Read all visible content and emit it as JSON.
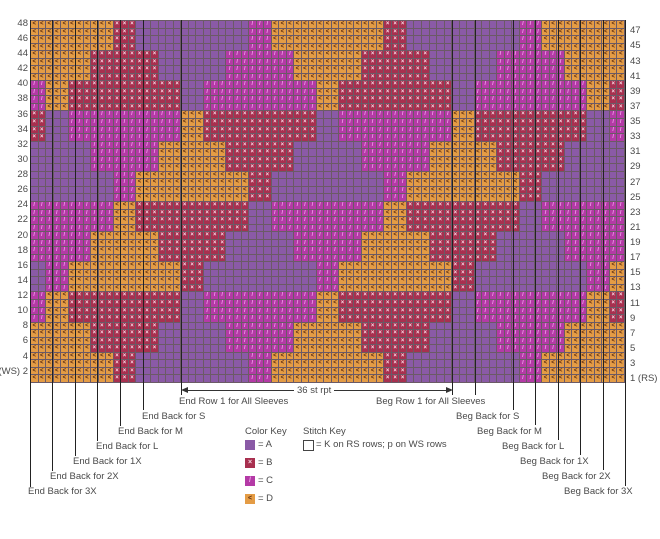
{
  "chart_data": {
    "type": "knitting-chart",
    "stitches": 79,
    "rows": 48,
    "repeat": 36,
    "colors": {
      "A": "#8a5aa6",
      "B": "#a8304f",
      "C": "#b43aa6",
      "D": "#e49c45"
    },
    "symbols": {
      "A": "",
      "B": "×",
      "C": "/",
      "D": "<"
    },
    "symbol_colors": {
      "A": "#8a5aa6",
      "B": "#f6d8e4",
      "C": "#f3a6ee",
      "D": "#5a2a10"
    },
    "geometries": {
      "g1": [
        [
          0,
          -4,
          15
        ],
        [
          1,
          11,
          3
        ],
        [
          2,
          14,
          15
        ],
        [
          3,
          29,
          3
        ]
      ],
      "g2": [
        [
          0,
          -1,
          9
        ],
        [
          1,
          8,
          9
        ],
        [
          2,
          17,
          9
        ],
        [
          3,
          26,
          9
        ]
      ],
      "g3": [
        [
          0,
          2,
          3
        ],
        [
          1,
          5,
          15
        ],
        [
          2,
          20,
          3
        ],
        [
          3,
          23,
          15
        ]
      ]
    },
    "bands": [
      {
        "rows": "1-12",
        "order": [
          "g1",
          "g2",
          "g3"
        ],
        "palette": [
          "D",
          "B",
          "A",
          "C"
        ]
      },
      {
        "rows": "13-24",
        "order": [
          "g3",
          "g2",
          "g1"
        ],
        "palette": [
          "C",
          "D",
          "B",
          "A"
        ]
      },
      {
        "rows": "25-36",
        "order": [
          "g1",
          "g2",
          "g3"
        ],
        "palette": [
          "A",
          "C",
          "D",
          "B"
        ]
      },
      {
        "rows": "37-48",
        "order": [
          "g3",
          "g2",
          "g1"
        ],
        "palette": [
          "D",
          "B",
          "A",
          "C"
        ]
      }
    ],
    "rows_per_step": 4,
    "row_labels_left": [
      "48",
      "46",
      "44",
      "42",
      "40",
      "38",
      "36",
      "34",
      "32",
      "30",
      "28",
      "26",
      "24",
      "22",
      "20",
      "18",
      "16",
      "14",
      "12",
      "10",
      "8",
      "6",
      "4",
      "(WS) 2"
    ],
    "row_labels_right": [
      "47",
      "45",
      "43",
      "41",
      "39",
      "37",
      "35",
      "33",
      "31",
      "29",
      "27",
      "25",
      "23",
      "21",
      "19",
      "17",
      "15",
      "13",
      "11",
      "9",
      "7",
      "5",
      "3",
      "1 (RS)"
    ]
  },
  "markers": {
    "end_row1": "End Row 1 for All Sleeves",
    "end_s": "End Back for S",
    "end_m": "End Back for M",
    "end_l": "End Back for L",
    "end_1x": "End Back for 1X",
    "end_2x": "End Back for 2X",
    "end_3x": "End Back for 3X",
    "beg_row1": "Beg Row 1 for All Sleeves",
    "beg_s": "Beg Back for S",
    "beg_m": "Beg Back for M",
    "beg_l": "Beg Back for L",
    "beg_1x": "Beg Back for 1X",
    "beg_2x": "Beg Back for 2X",
    "beg_3x": "Beg Back for 3X",
    "repeat": "36 st rpt"
  },
  "color_key": {
    "title": "Color Key",
    "items": [
      "= A",
      "= B",
      "= C",
      "= D"
    ]
  },
  "stitch_key": {
    "title": "Stitch Key",
    "item": "= K on RS rows; p on WS rows"
  }
}
